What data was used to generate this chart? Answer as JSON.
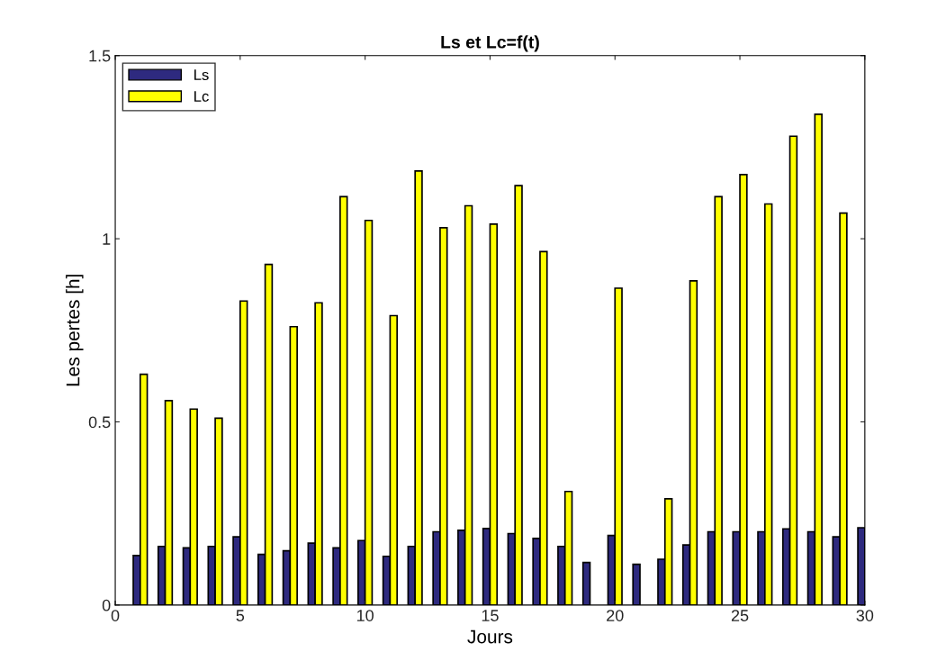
{
  "chart_data": {
    "type": "bar",
    "title": "Ls et Lc=f(t)",
    "xlabel": "Jours",
    "ylabel": "Les pertes [h]",
    "x": [
      1,
      2,
      3,
      4,
      5,
      6,
      7,
      8,
      9,
      10,
      11,
      12,
      13,
      14,
      15,
      16,
      17,
      18,
      19,
      20,
      21,
      22,
      23,
      24,
      25,
      26,
      27,
      28,
      29,
      30
    ],
    "series": [
      {
        "name": "Ls",
        "color": "#2e2a7f",
        "values": [
          0.135,
          0.16,
          0.156,
          0.16,
          0.186,
          0.138,
          0.148,
          0.169,
          0.156,
          0.176,
          0.133,
          0.16,
          0.2,
          0.204,
          0.209,
          0.195,
          0.182,
          0.16,
          0.116,
          0.19,
          0.111,
          0.125,
          0.164,
          0.2,
          0.2,
          0.2,
          0.208,
          0.2,
          0.186,
          0.211
        ]
      },
      {
        "name": "Lc",
        "color": "#ffff00",
        "values": [
          0.63,
          0.558,
          0.535,
          0.51,
          0.83,
          0.93,
          0.76,
          0.825,
          1.115,
          1.05,
          0.79,
          1.185,
          1.03,
          1.09,
          1.04,
          1.145,
          0.965,
          0.31,
          null,
          0.865,
          null,
          0.29,
          0.885,
          1.115,
          1.175,
          1.095,
          1.28,
          1.34,
          1.07,
          null
        ]
      }
    ],
    "xlim": [
      0,
      30
    ],
    "xticks": [
      0,
      5,
      10,
      15,
      20,
      25,
      30
    ],
    "ylim": [
      0,
      1.5
    ],
    "yticks": [
      0,
      0.5,
      1,
      1.5
    ],
    "grid": false,
    "legend": "top left"
  }
}
